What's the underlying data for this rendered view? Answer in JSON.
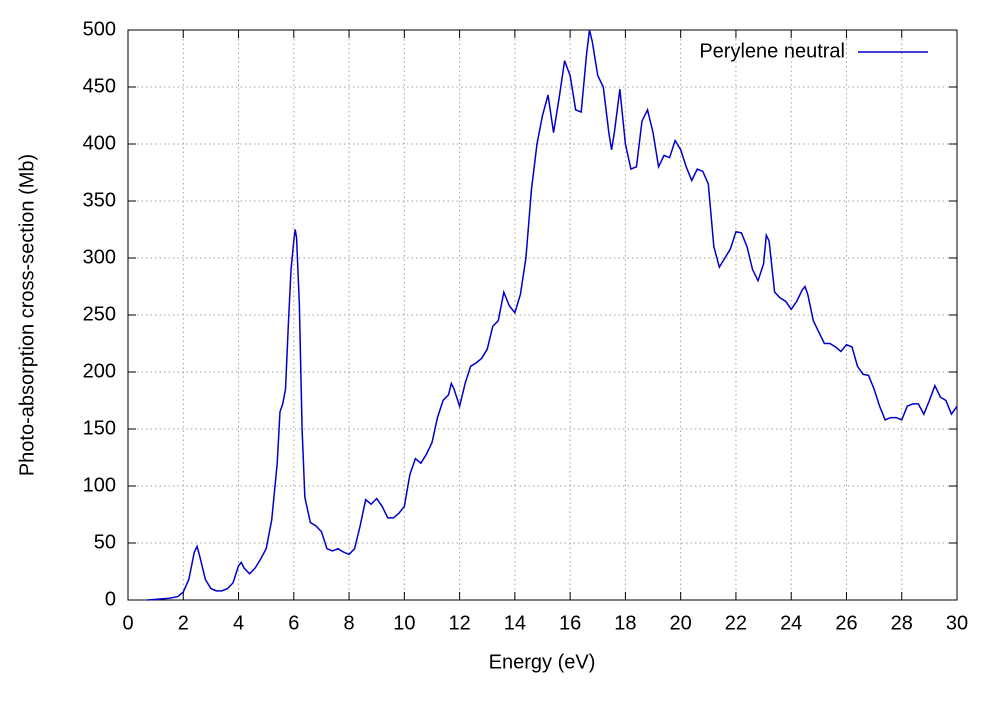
{
  "chart_data": {
    "type": "line",
    "xlabel": "Energy (eV)",
    "ylabel": "Photo-absorption cross-section (Mb)",
    "xlim": [
      0,
      30
    ],
    "ylim": [
      0,
      500
    ],
    "xticks": [
      0,
      2,
      4,
      6,
      8,
      10,
      12,
      14,
      16,
      18,
      20,
      22,
      24,
      26,
      28,
      30
    ],
    "yticks": [
      0,
      50,
      100,
      150,
      200,
      250,
      300,
      350,
      400,
      450,
      500
    ],
    "grid": true,
    "legend": "top-right",
    "x": [
      0.7,
      1.0,
      1.5,
      1.8,
      2.0,
      2.2,
      2.4,
      2.5,
      2.6,
      2.8,
      3.0,
      3.2,
      3.4,
      3.6,
      3.8,
      4.0,
      4.1,
      4.2,
      4.4,
      4.6,
      4.8,
      5.0,
      5.2,
      5.4,
      5.5,
      5.6,
      5.7,
      5.8,
      5.9,
      6.0,
      6.05,
      6.1,
      6.2,
      6.3,
      6.4,
      6.6,
      6.8,
      7.0,
      7.2,
      7.4,
      7.6,
      7.8,
      8.0,
      8.2,
      8.4,
      8.6,
      8.8,
      9.0,
      9.2,
      9.4,
      9.6,
      9.8,
      10.0,
      10.2,
      10.4,
      10.6,
      10.8,
      11.0,
      11.2,
      11.4,
      11.6,
      11.7,
      11.8,
      12.0,
      12.2,
      12.4,
      12.6,
      12.8,
      13.0,
      13.2,
      13.4,
      13.6,
      13.8,
      14.0,
      14.2,
      14.4,
      14.6,
      14.8,
      15.0,
      15.2,
      15.4,
      15.6,
      15.8,
      16.0,
      16.2,
      16.4,
      16.6,
      16.7,
      16.8,
      17.0,
      17.2,
      17.4,
      17.5,
      17.6,
      17.8,
      18.0,
      18.2,
      18.4,
      18.6,
      18.8,
      19.0,
      19.2,
      19.4,
      19.6,
      19.8,
      20.0,
      20.2,
      20.4,
      20.6,
      20.8,
      21.0,
      21.2,
      21.4,
      21.6,
      21.8,
      22.0,
      22.2,
      22.4,
      22.6,
      22.8,
      23.0,
      23.1,
      23.2,
      23.4,
      23.6,
      23.8,
      24.0,
      24.2,
      24.4,
      24.5,
      24.6,
      24.8,
      25.0,
      25.2,
      25.4,
      25.6,
      25.8,
      26.0,
      26.2,
      26.4,
      26.6,
      26.8,
      27.0,
      27.2,
      27.4,
      27.6,
      27.8,
      28.0,
      28.2,
      28.4,
      28.6,
      28.8,
      29.0,
      29.2,
      29.4,
      29.6,
      29.8,
      30.0
    ],
    "series": [
      {
        "name": "Perylene neutral",
        "color": "#0000cc",
        "values": [
          0,
          0.5,
          1.5,
          3,
          7,
          18,
          42,
          47,
          38,
          18,
          10,
          8,
          8,
          10,
          15,
          30,
          33,
          28,
          23,
          28,
          36,
          45,
          70,
          120,
          165,
          172,
          185,
          240,
          290,
          315,
          325,
          318,
          260,
          150,
          90,
          68,
          65,
          60,
          45,
          43,
          45,
          42,
          40,
          45,
          65,
          88,
          84,
          89,
          82,
          72,
          72,
          76,
          82,
          110,
          124,
          120,
          128,
          138,
          160,
          175,
          180,
          190,
          185,
          170,
          190,
          205,
          208,
          212,
          220,
          240,
          245,
          270,
          258,
          252,
          268,
          300,
          360,
          400,
          425,
          443,
          410,
          440,
          473,
          460,
          430,
          428,
          480,
          500,
          490,
          460,
          450,
          410,
          395,
          410,
          448,
          400,
          378,
          380,
          420,
          430,
          410,
          380,
          390,
          388,
          403,
          395,
          380,
          368,
          378,
          376,
          365,
          310,
          292,
          300,
          308,
          323,
          322,
          310,
          290,
          280,
          295,
          320,
          315,
          270,
          265,
          262,
          255,
          262,
          272,
          275,
          268,
          245,
          235,
          225,
          225,
          222,
          218,
          224,
          222,
          205,
          198,
          197,
          185,
          170,
          158,
          160,
          160,
          158,
          170,
          172,
          172,
          163,
          175,
          188,
          178,
          175,
          163,
          170
        ]
      }
    ]
  }
}
